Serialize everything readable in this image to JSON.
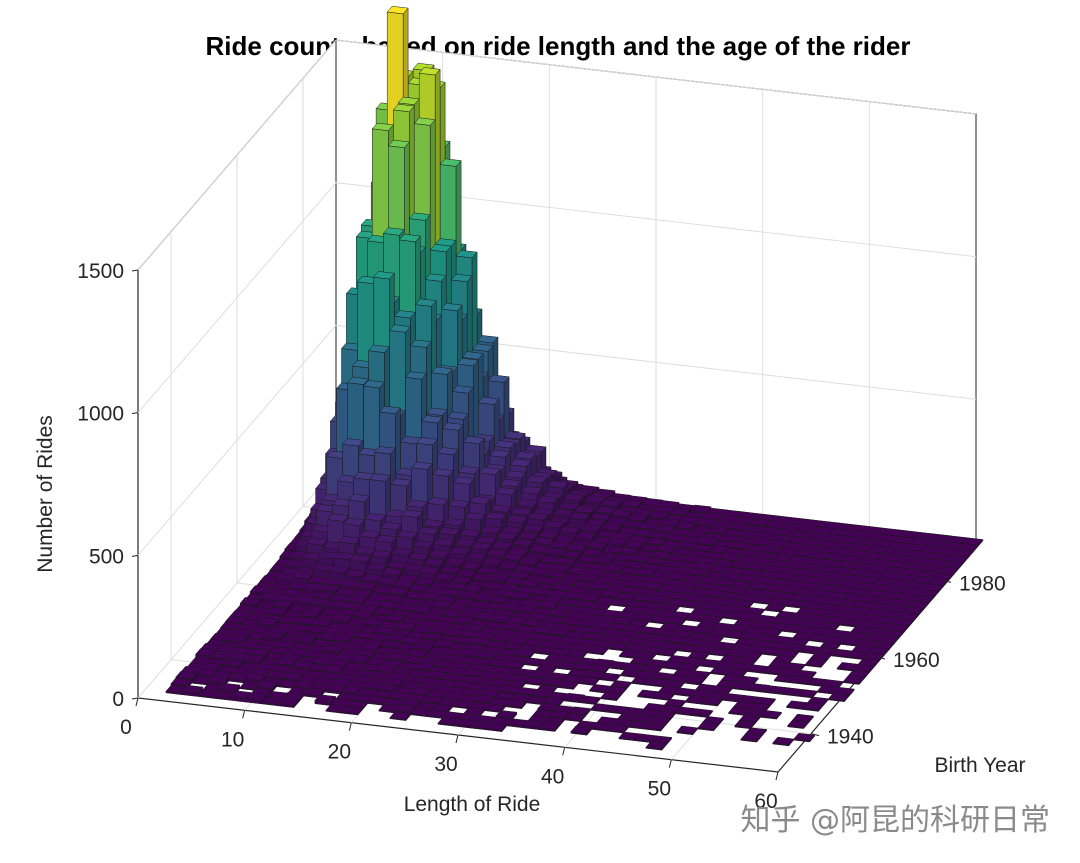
{
  "chart_data": {
    "type": "bar3d",
    "title": "Ride counts based on ride length and the age of the rider",
    "xlabel": "Length of Ride",
    "ylabel": "Birth Year",
    "zlabel": "Number of Rides",
    "xlim": [
      0,
      60
    ],
    "ylim": [
      1930,
      1990
    ],
    "zlim": [
      0,
      1500
    ],
    "xticks": [
      "0",
      "10",
      "20",
      "30",
      "40",
      "50",
      "60"
    ],
    "yticks": [
      "1940",
      "1960",
      "1980"
    ],
    "zticks": [
      "0",
      "500",
      "1000",
      "1500"
    ],
    "colormap": "viridis",
    "grid": true,
    "peak": {
      "length": 8,
      "birth_year": 1987,
      "rides": 1640
    },
    "distribution": "Ride counts peak for short rides (about 5–12) by riders born in the mid-to-late 1980s, then decay steeply with longer ride length and older birth year; many cells are empty for long rides and early birth years."
  },
  "watermark": "知乎 @阿昆的科研日常"
}
